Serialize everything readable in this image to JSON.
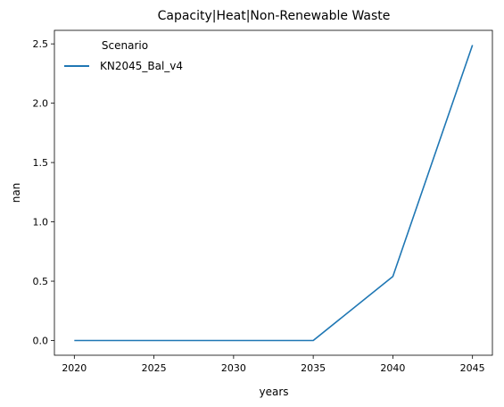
{
  "chart_data": {
    "type": "line",
    "title": "Capacity|Heat|Non-Renewable Waste",
    "xlabel": "years",
    "ylabel": "nan",
    "x": [
      2020,
      2025,
      2030,
      2035,
      2040,
      2045
    ],
    "xticks": [
      2020,
      2025,
      2030,
      2035,
      2040,
      2045
    ],
    "xtick_labels": [
      "2020",
      "2025",
      "2030",
      "2035",
      "2040",
      "2045"
    ],
    "yticks": [
      0.0,
      0.5,
      1.0,
      1.5,
      2.0,
      2.5
    ],
    "ytick_labels": [
      "0.0",
      "0.5",
      "1.0",
      "1.5",
      "2.0",
      "2.5"
    ],
    "xlim": [
      2018.75,
      2046.25
    ],
    "ylim": [
      -0.124,
      2.614
    ],
    "grid": false,
    "legend": {
      "title": "Scenario",
      "placement": "top-left"
    },
    "series": [
      {
        "name": "KN2045_Bal_v4",
        "color": "#1f77b4",
        "values": [
          0.0,
          0.0,
          0.0,
          0.0,
          0.54,
          2.49
        ]
      }
    ]
  }
}
